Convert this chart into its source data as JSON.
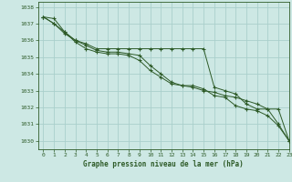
{
  "title": "Graphe pression niveau de la mer (hPa)",
  "background_color": "#cde8e4",
  "plot_bg_color": "#cde8e4",
  "grid_color": "#aacfcc",
  "line_color": "#2d5a27",
  "text_color": "#2d5a27",
  "xlim": [
    -0.5,
    23
  ],
  "ylim": [
    1029.5,
    1038.3
  ],
  "yticks": [
    1030,
    1031,
    1032,
    1033,
    1034,
    1035,
    1036,
    1037,
    1038
  ],
  "xticks": [
    0,
    1,
    2,
    3,
    4,
    5,
    6,
    7,
    8,
    9,
    10,
    11,
    12,
    13,
    14,
    15,
    16,
    17,
    18,
    19,
    20,
    21,
    22,
    23
  ],
  "series": [
    [
      1037.4,
      1037.3,
      1036.5,
      1036.0,
      1035.8,
      1035.5,
      1035.5,
      1035.5,
      1035.5,
      1035.5,
      1035.5,
      1035.5,
      1035.5,
      1035.5,
      1035.5,
      1035.5,
      1033.2,
      1033.0,
      1032.8,
      1032.2,
      1031.9,
      1031.9,
      1031.9,
      1030.0
    ],
    [
      1037.4,
      1037.0,
      1036.5,
      1035.9,
      1035.5,
      1035.3,
      1035.2,
      1035.2,
      1035.1,
      1034.8,
      1034.2,
      1033.8,
      1033.4,
      1033.3,
      1033.3,
      1033.1,
      1032.7,
      1032.6,
      1032.1,
      1031.9,
      1031.8,
      1031.5,
      1030.9,
      1030.0
    ],
    [
      1037.4,
      1037.0,
      1036.4,
      1036.0,
      1035.7,
      1035.4,
      1035.3,
      1035.3,
      1035.2,
      1035.1,
      1034.5,
      1034.0,
      1033.5,
      1033.3,
      1033.2,
      1033.0,
      1032.9,
      1032.7,
      1032.6,
      1032.4,
      1032.2,
      1031.9,
      1031.0,
      1030.0
    ]
  ]
}
